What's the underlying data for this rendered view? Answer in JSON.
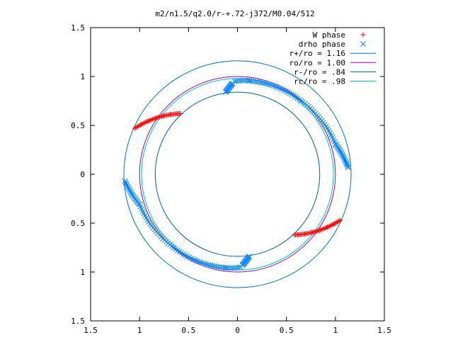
{
  "chart_data": {
    "type": "scatter",
    "title": "m2/n1.5/q2.0/r-+.72-j372/M0.04/512",
    "xlabel": "",
    "ylabel": "",
    "xlim": [
      -1.5,
      1.5
    ],
    "ylim": [
      -1.5,
      1.5
    ],
    "grid": false,
    "legend_position": "top-right",
    "x_ticks": [
      -1.5,
      -1,
      -0.5,
      0,
      0.5,
      1,
      1.5
    ],
    "x_tick_labels": [
      "1.5",
      "1",
      "0.5",
      "0",
      "0.5",
      "1",
      "1.5"
    ],
    "y_ticks": [
      1.5,
      1,
      0.5,
      0,
      -0.5,
      -1,
      -1.5
    ],
    "y_tick_labels": [
      "1.5",
      "1",
      "0.5",
      "0",
      "0.5",
      "1",
      "1.5"
    ],
    "series": [
      {
        "name": "W phase",
        "marker": "plus",
        "color": "#ff0000",
        "arcs": [
          {
            "x_start": -1.05,
            "y_start": 0.47,
            "x_end": -0.58,
            "y_end": 0.62,
            "n": 40
          },
          {
            "x_start": 0.58,
            "y_start": -0.62,
            "x_end": 1.05,
            "y_end": -0.47,
            "n": 40
          }
        ]
      },
      {
        "name": "drho phase",
        "marker": "x",
        "color": "#0080ff",
        "arcs": [
          {
            "x_start": -0.12,
            "y_start": 0.84,
            "x_end": -0.05,
            "y_end": 0.93,
            "n": 14
          },
          {
            "x_start": -0.03,
            "y_start": 0.95,
            "x_end": 0.12,
            "y_end": 0.96,
            "n": 8
          },
          {
            "x_start": 0.12,
            "y_start": 0.955,
            "x_end": 0.65,
            "y_end": 0.75,
            "n": 26
          },
          {
            "x_start": 0.65,
            "y_start": 0.75,
            "x_end": 1.0,
            "y_end": 0.31,
            "n": 24
          },
          {
            "x_start": 1.0,
            "y_start": 0.31,
            "x_end": 1.13,
            "y_end": 0.07,
            "n": 20
          },
          {
            "x_start": -1.15,
            "y_start": -0.07,
            "x_end": -1.0,
            "y_end": -0.31,
            "n": 20
          },
          {
            "x_start": -1.0,
            "y_start": -0.31,
            "x_end": -0.65,
            "y_end": -0.75,
            "n": 24
          },
          {
            "x_start": -0.65,
            "y_start": -0.75,
            "x_end": -0.12,
            "y_end": -0.955,
            "n": 26
          },
          {
            "x_start": -0.12,
            "y_start": -0.96,
            "x_end": 0.03,
            "y_end": -0.95,
            "n": 8
          },
          {
            "x_start": 0.05,
            "y_start": -0.93,
            "x_end": 0.12,
            "y_end": -0.84,
            "n": 14
          }
        ]
      }
    ],
    "circles": [
      {
        "name": "r+/ro = 1.16",
        "radius": 1.16,
        "color": "#0072c0"
      },
      {
        "name": "ro/ro = 1.00",
        "radius": 1.0,
        "color": "#a000b0"
      },
      {
        "name": "r-/ro = .84",
        "radius": 0.84,
        "color": "#0060a0"
      },
      {
        "name": "rc/ro = .98",
        "radius": 0.98,
        "color": "#00c0c0"
      }
    ]
  }
}
